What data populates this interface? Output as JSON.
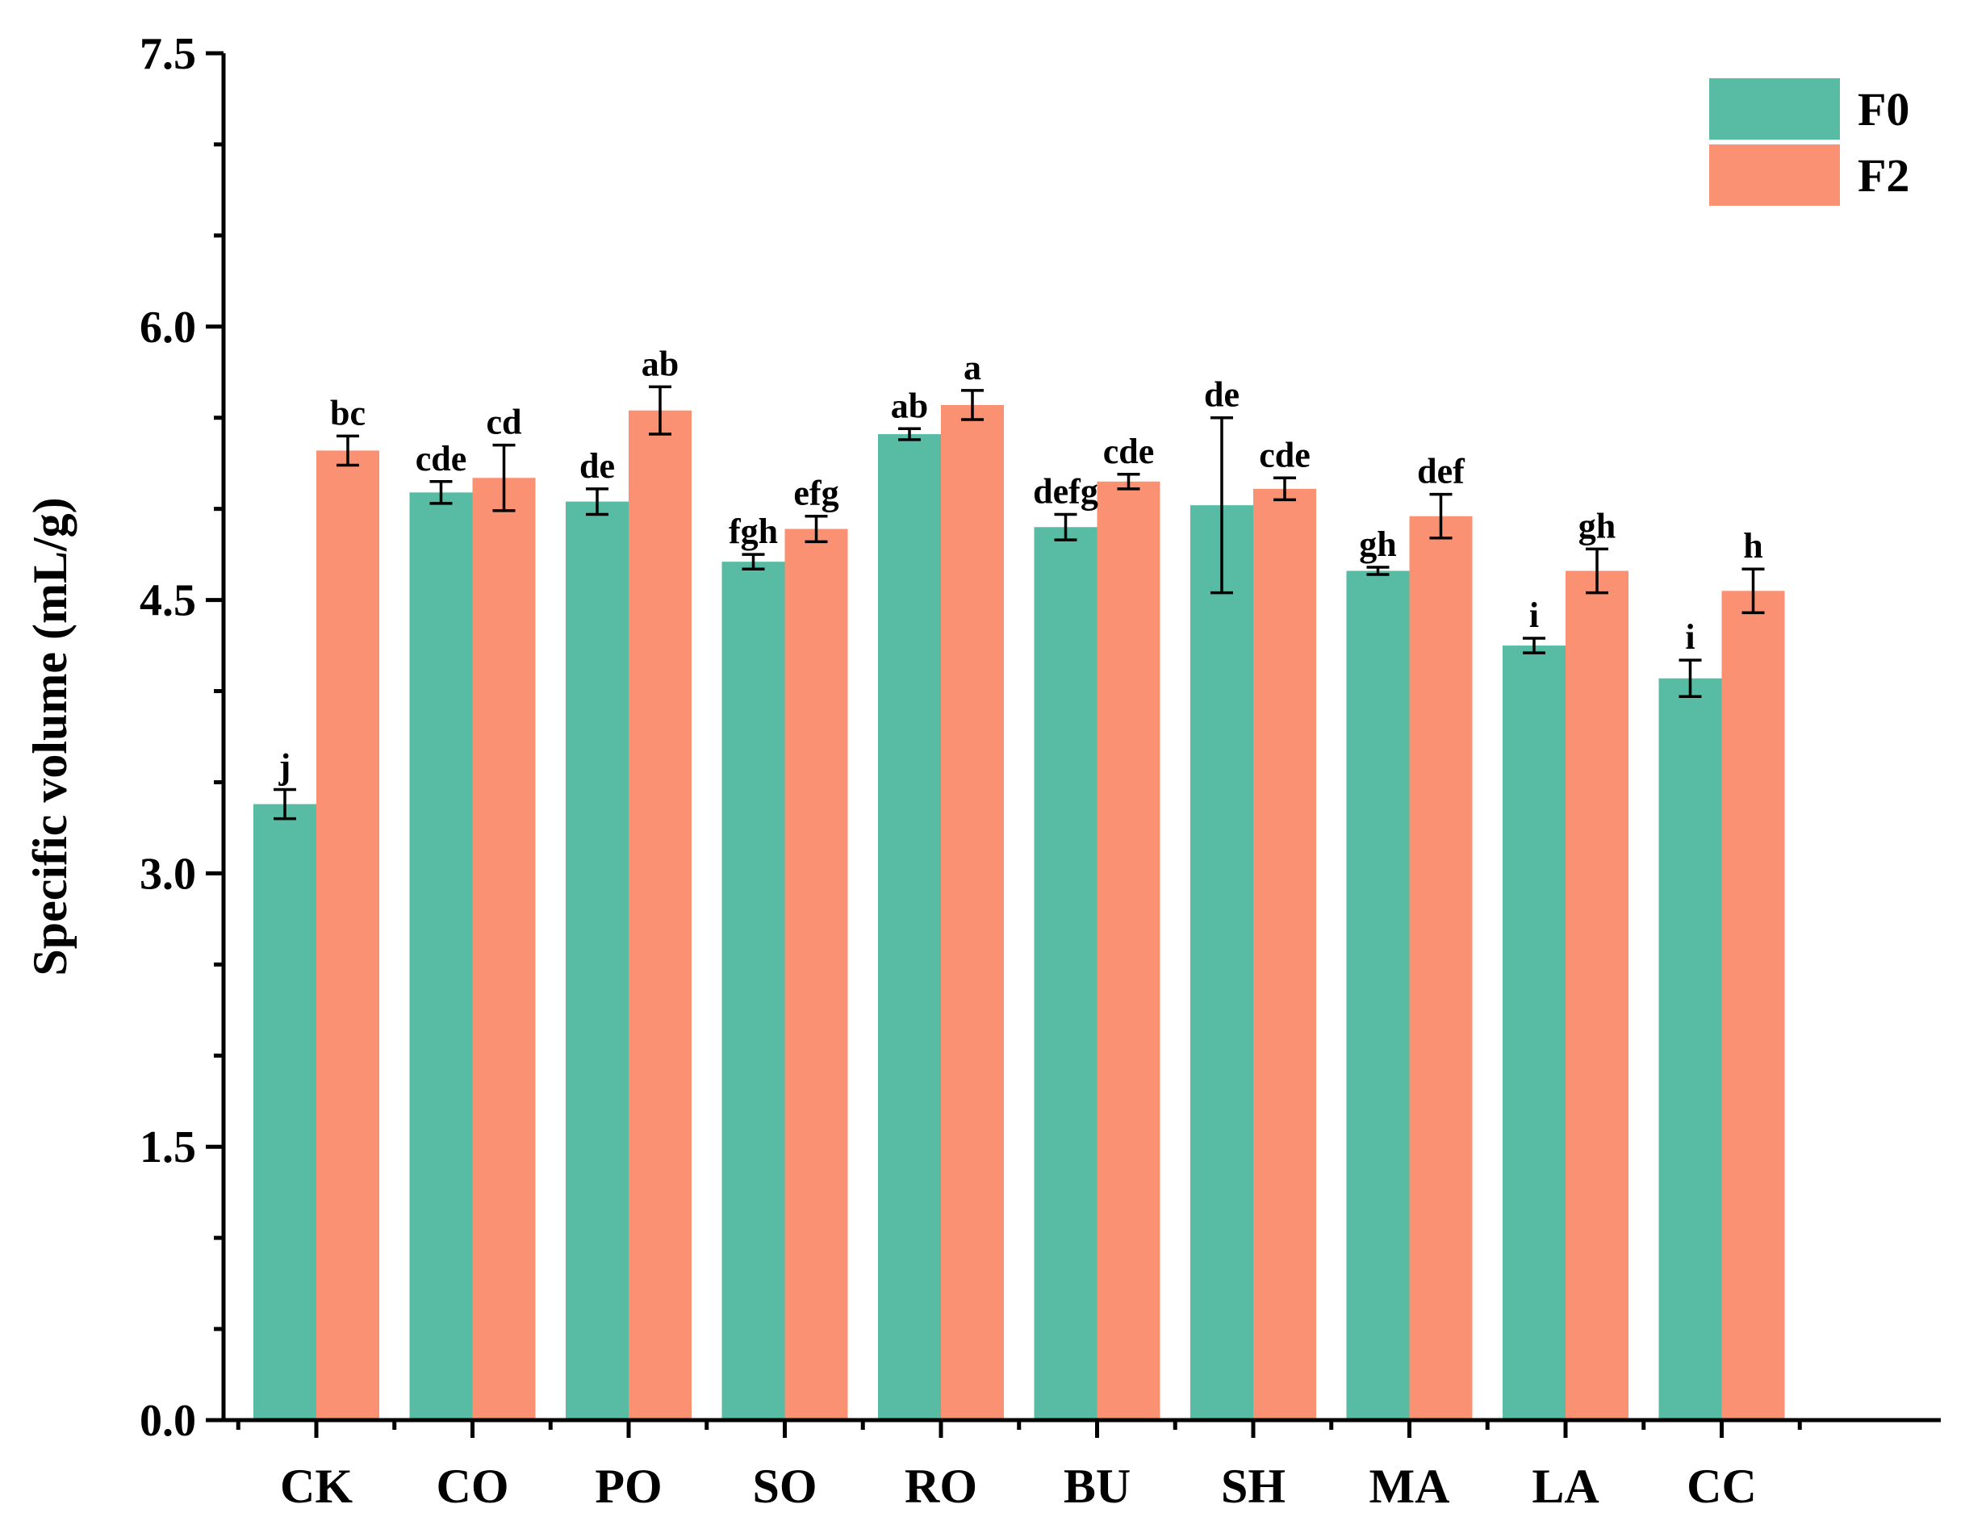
{
  "chart_data": {
    "type": "bar",
    "ylabel": "Specific volume (mL/g)",
    "xlabel": "",
    "ylim": [
      0,
      7.5
    ],
    "yticks": [
      "0.0",
      "1.5",
      "3.0",
      "4.5",
      "6.0",
      "7.5"
    ],
    "ytick_values": [
      0,
      1.5,
      3.0,
      4.5,
      6.0,
      7.5
    ],
    "minor_step": 0.5,
    "legend_position": "top-right",
    "categories": [
      "CK",
      "CO",
      "PO",
      "SO",
      "RO",
      "BU",
      "SH",
      "MA",
      "LA",
      "CC"
    ],
    "series": [
      {
        "name": "F0",
        "color": "#57BCA3",
        "values": [
          3.38,
          5.09,
          5.04,
          4.71,
          5.41,
          4.9,
          5.02,
          4.66,
          4.25,
          4.07
        ],
        "errors": [
          0.08,
          0.06,
          0.07,
          0.04,
          0.03,
          0.07,
          0.48,
          0.02,
          0.04,
          0.1
        ],
        "labels": [
          "j",
          "cde",
          "de",
          "fgh",
          "ab",
          "defg",
          "de",
          "gh",
          "i",
          "i"
        ]
      },
      {
        "name": "F2",
        "color": "#FA9172",
        "values": [
          5.32,
          5.17,
          5.54,
          4.89,
          5.57,
          5.15,
          5.11,
          4.96,
          4.66,
          4.55
        ],
        "errors": [
          0.08,
          0.18,
          0.13,
          0.07,
          0.08,
          0.04,
          0.06,
          0.12,
          0.12,
          0.12
        ],
        "labels": [
          "bc",
          "cd",
          "ab",
          "efg",
          "a",
          "cde",
          "cde",
          "def",
          "gh",
          "h"
        ]
      }
    ]
  }
}
